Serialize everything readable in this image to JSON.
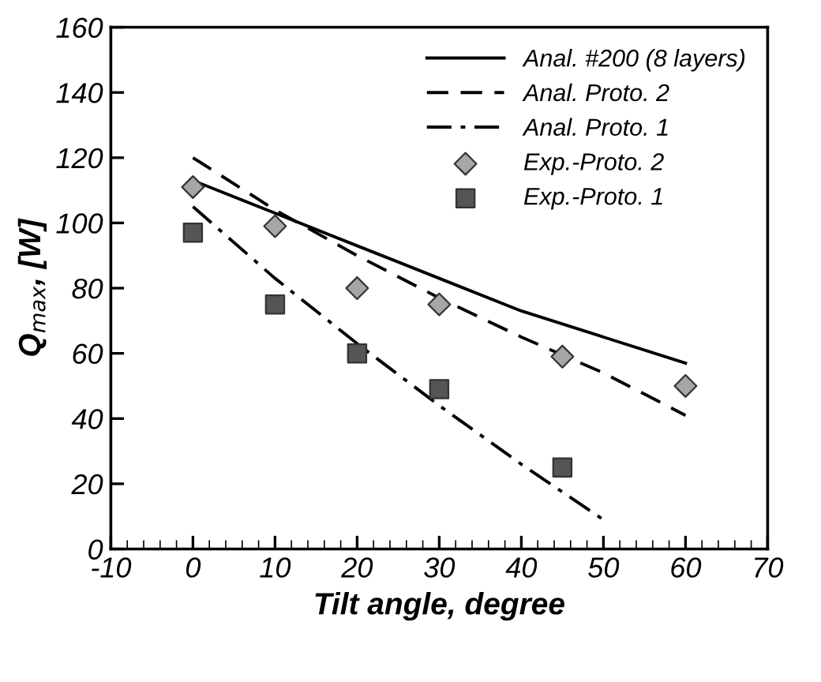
{
  "chart_data": {
    "type": "line",
    "xlabel": "Tilt angle, degree",
    "ylabel": "Q$_{max}$, [W]",
    "xlim": [
      -10,
      70
    ],
    "ylim": [
      0,
      160
    ],
    "xticks": [
      -10,
      0,
      10,
      20,
      30,
      40,
      50,
      60,
      70
    ],
    "yticks": [
      0,
      20,
      40,
      60,
      80,
      100,
      120,
      140,
      160
    ],
    "grid": false,
    "legend": "top right",
    "series": [
      {
        "name": "Anal. #200 (8 layers)",
        "line_style": "solid",
        "color": "#000000",
        "x": [
          0,
          10,
          20,
          30,
          40,
          50,
          60
        ],
        "values": [
          113,
          103,
          93,
          83,
          73,
          65,
          57
        ]
      },
      {
        "name": "Anal. Proto. 2",
        "line_style": "dashed",
        "color": "#000000",
        "x": [
          0,
          10,
          20,
          30,
          40,
          50,
          60
        ],
        "values": [
          120,
          104,
          90,
          77,
          65,
          54,
          41
        ]
      },
      {
        "name": "Anal. Proto. 1",
        "line_style": "dashdot",
        "color": "#000000",
        "x": [
          0,
          10,
          20,
          30,
          40,
          50
        ],
        "values": [
          105,
          83,
          63,
          44,
          26,
          9
        ]
      },
      {
        "name": "Exp.-Proto. 2",
        "type": "scatter",
        "marker": "diamond",
        "color": "#a6a6a6",
        "x": [
          0,
          10,
          20,
          30,
          45,
          60
        ],
        "values": [
          111,
          99,
          80,
          75,
          59,
          50
        ]
      },
      {
        "name": "Exp.-Proto. 1",
        "type": "scatter",
        "marker": "square",
        "color": "#555555",
        "x": [
          0,
          10,
          20,
          30,
          45
        ],
        "values": [
          97,
          75,
          60,
          49,
          25
        ]
      }
    ]
  }
}
